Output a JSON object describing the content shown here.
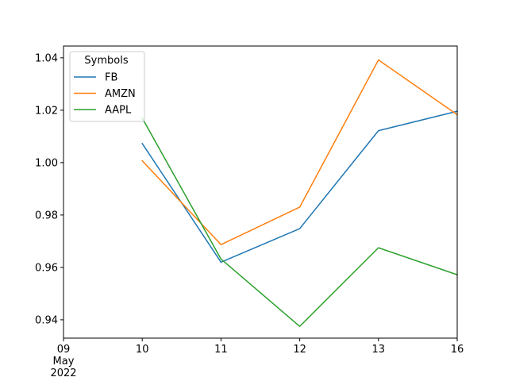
{
  "chart_data": {
    "type": "line",
    "legend": {
      "title": "Symbols",
      "placement": "top-left"
    },
    "x": [
      "2022-05-10",
      "2022-05-11",
      "2022-05-12",
      "2022-05-13",
      "2022-05-16"
    ],
    "xlim": [
      "2022-05-09",
      "2022-05-16"
    ],
    "x_ticks": [
      {
        "value": "2022-05-09",
        "lines": [
          "09",
          "May",
          "2022"
        ]
      },
      {
        "value": "2022-05-10",
        "lines": [
          "10"
        ]
      },
      {
        "value": "2022-05-11",
        "lines": [
          "11"
        ]
      },
      {
        "value": "2022-05-12",
        "lines": [
          "12"
        ]
      },
      {
        "value": "2022-05-13",
        "lines": [
          "13"
        ]
      },
      {
        "value": "2022-05-16",
        "lines": [
          "16"
        ]
      }
    ],
    "ylim": [
      0.933,
      1.0445
    ],
    "y_ticks": [
      "0.94",
      "0.96",
      "0.98",
      "1.00",
      "1.02",
      "1.04"
    ],
    "grid": false,
    "series": [
      {
        "name": "FB",
        "color": "#1f77b4",
        "values": [
          1.0073,
          0.962,
          0.9748,
          1.0122,
          1.0196
        ]
      },
      {
        "name": "AMZN",
        "color": "#ff7f0e",
        "values": [
          1.0007,
          0.9687,
          0.983,
          1.0392,
          1.0183
        ]
      },
      {
        "name": "AAPL",
        "color": "#2ca02c",
        "values": [
          1.017,
          0.9632,
          0.9375,
          0.9675,
          0.9572
        ]
      }
    ]
  }
}
